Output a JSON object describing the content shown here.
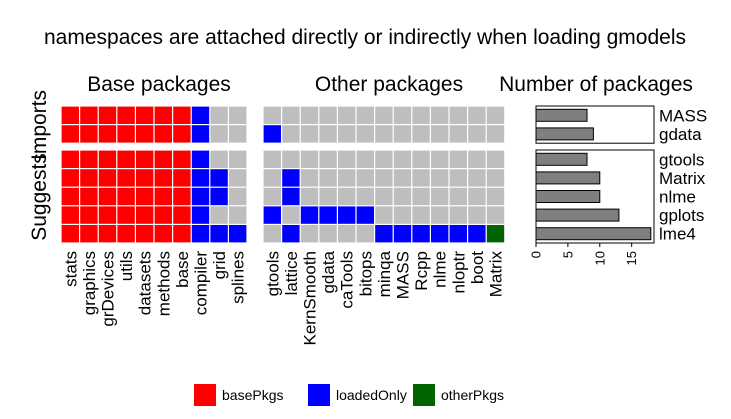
{
  "chart_data": {
    "type": "heatmap",
    "title": "namespaces are attached directly or indirectly when loading gmodels",
    "ylabel_facets": [
      "Imports",
      "Suggests"
    ],
    "panel_titles": [
      "Base packages",
      "Other packages",
      "Number of packages"
    ],
    "base_packages": [
      "stats",
      "graphics",
      "grDevices",
      "utils",
      "datasets",
      "methods",
      "base",
      "compiler",
      "grid",
      "splines"
    ],
    "other_packages": [
      "gtools",
      "lattice",
      "KernSmooth",
      "gdata",
      "caTools",
      "bitops",
      "minqa",
      "MASS",
      "Rcpp",
      "nlme",
      "nloptr",
      "boot",
      "Matrix"
    ],
    "imports_rows": [
      "MASS",
      "gdata"
    ],
    "suggests_rows": [
      "gtools",
      "Matrix",
      "nlme",
      "gplots",
      "lme4"
    ],
    "base_cells": {
      "MASS": [
        "basePkgs",
        "basePkgs",
        "basePkgs",
        "basePkgs",
        "basePkgs",
        "basePkgs",
        "basePkgs",
        "loadedOnly",
        "none",
        "none"
      ],
      "gdata": [
        "basePkgs",
        "basePkgs",
        "basePkgs",
        "basePkgs",
        "basePkgs",
        "basePkgs",
        "basePkgs",
        "loadedOnly",
        "none",
        "none"
      ],
      "gtools": [
        "basePkgs",
        "basePkgs",
        "basePkgs",
        "basePkgs",
        "basePkgs",
        "basePkgs",
        "basePkgs",
        "loadedOnly",
        "none",
        "none"
      ],
      "Matrix": [
        "basePkgs",
        "basePkgs",
        "basePkgs",
        "basePkgs",
        "basePkgs",
        "basePkgs",
        "basePkgs",
        "loadedOnly",
        "loadedOnly",
        "none"
      ],
      "nlme": [
        "basePkgs",
        "basePkgs",
        "basePkgs",
        "basePkgs",
        "basePkgs",
        "basePkgs",
        "basePkgs",
        "loadedOnly",
        "loadedOnly",
        "none"
      ],
      "gplots": [
        "basePkgs",
        "basePkgs",
        "basePkgs",
        "basePkgs",
        "basePkgs",
        "basePkgs",
        "basePkgs",
        "loadedOnly",
        "none",
        "none"
      ],
      "lme4": [
        "basePkgs",
        "basePkgs",
        "basePkgs",
        "basePkgs",
        "basePkgs",
        "basePkgs",
        "basePkgs",
        "loadedOnly",
        "loadedOnly",
        "loadedOnly"
      ]
    },
    "other_cells": {
      "MASS": [
        "none",
        "none",
        "none",
        "none",
        "none",
        "none",
        "none",
        "none",
        "none",
        "none",
        "none",
        "none",
        "none"
      ],
      "gdata": [
        "loadedOnly",
        "none",
        "none",
        "none",
        "none",
        "none",
        "none",
        "none",
        "none",
        "none",
        "none",
        "none",
        "none"
      ],
      "gtools": [
        "none",
        "none",
        "none",
        "none",
        "none",
        "none",
        "none",
        "none",
        "none",
        "none",
        "none",
        "none",
        "none"
      ],
      "Matrix": [
        "none",
        "loadedOnly",
        "none",
        "none",
        "none",
        "none",
        "none",
        "none",
        "none",
        "none",
        "none",
        "none",
        "none"
      ],
      "nlme": [
        "none",
        "loadedOnly",
        "none",
        "none",
        "none",
        "none",
        "none",
        "none",
        "none",
        "none",
        "none",
        "none",
        "none"
      ],
      "gplots": [
        "loadedOnly",
        "none",
        "loadedOnly",
        "loadedOnly",
        "loadedOnly",
        "loadedOnly",
        "none",
        "none",
        "none",
        "none",
        "none",
        "none",
        "none"
      ],
      "lme4": [
        "none",
        "loadedOnly",
        "none",
        "none",
        "none",
        "none",
        "loadedOnly",
        "loadedOnly",
        "loadedOnly",
        "loadedOnly",
        "loadedOnly",
        "loadedOnly",
        "otherPkgs"
      ]
    },
    "counts": {
      "imports": [
        {
          "name": "MASS",
          "value": 8
        },
        {
          "name": "gdata",
          "value": 9
        }
      ],
      "suggests": [
        {
          "name": "gtools",
          "value": 8
        },
        {
          "name": "Matrix",
          "value": 10
        },
        {
          "name": "nlme",
          "value": 10
        },
        {
          "name": "gplots",
          "value": 13
        },
        {
          "name": "lme4",
          "value": 18
        }
      ],
      "xlim": [
        0,
        18.5
      ],
      "ticks": [
        0,
        5,
        10,
        15
      ]
    },
    "legend": [
      {
        "key": "basePkgs",
        "label": "basePkgs",
        "color": "#ff0000"
      },
      {
        "key": "loadedOnly",
        "label": "loadedOnly",
        "color": "#0000ff"
      },
      {
        "key": "otherPkgs",
        "label": "otherPkgs",
        "color": "#006400"
      }
    ],
    "empty_color": "#bebebe",
    "bar_color": "#7f7f7f"
  }
}
